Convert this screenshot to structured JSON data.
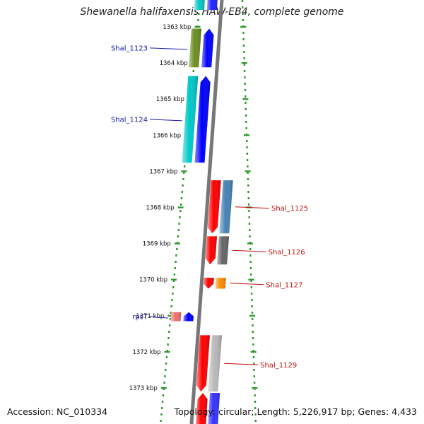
{
  "title": "Shewanella halifaxensis HAW-EB4, complete genome",
  "accession": "Accession: NC_010334",
  "topology": "Topology: circular; Length: 5,226,917 bp; Genes: 4,433",
  "colors": {
    "dots": "#2e9a2e",
    "backbone": "#777777",
    "left_label": "#1a1aa8",
    "right_label": "#c01010"
  },
  "ticks": [
    {
      "label": "1363 kbp"
    },
    {
      "label": "1364 kbp"
    },
    {
      "label": "1365 kbp"
    },
    {
      "label": "1366 kbp"
    },
    {
      "label": "1367 kbp"
    },
    {
      "label": "1368 kbp"
    },
    {
      "label": "1369 kbp"
    },
    {
      "label": "1370 kbp"
    },
    {
      "label": "1371 kbp"
    },
    {
      "label": "1372 kbp"
    },
    {
      "label": "1373 kbp"
    }
  ],
  "genes_left": [
    {
      "name": "Shal_1123",
      "start_kbp": 1363.05,
      "end_kbp": 1364.12,
      "color": "#6b8e23"
    },
    {
      "name": "Shal_1124",
      "start_kbp": 1364.36,
      "end_kbp": 1366.76,
      "color": "#00c8c8"
    },
    {
      "name": "rpsT",
      "start_kbp": 1370.9,
      "end_kbp": 1371.15,
      "color": "#f07070"
    }
  ],
  "genes_right": [
    {
      "name": "Shal_1125",
      "start_kbp": 1367.25,
      "end_kbp": 1368.72,
      "color": "#4682b4"
    },
    {
      "name": "Shal_1126",
      "start_kbp": 1368.8,
      "end_kbp": 1369.58,
      "color": "#666666"
    },
    {
      "name": "Shal_1127",
      "start_kbp": 1369.95,
      "end_kbp": 1370.25,
      "color": "#ff8c00"
    },
    {
      "name": "Shal_1129",
      "start_kbp": 1371.54,
      "end_kbp": 1373.1,
      "color": "#b8b8b8"
    }
  ]
}
